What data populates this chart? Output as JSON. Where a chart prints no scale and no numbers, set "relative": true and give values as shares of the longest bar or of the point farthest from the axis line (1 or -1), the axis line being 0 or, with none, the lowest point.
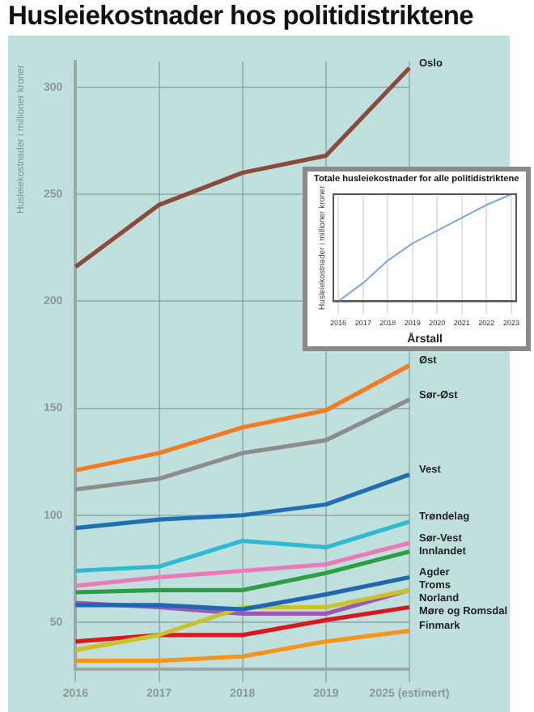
{
  "chart_data": [
    {
      "type": "line",
      "title": "Husleiekostnader hos politidistriktene",
      "ylabel": "Husleiekostnader i millioner kroner",
      "categories": [
        "2016",
        "2017",
        "2018",
        "2019",
        "2025 (estimert)"
      ],
      "ylim": [
        28,
        312
      ],
      "yticks": [
        50,
        100,
        150,
        200,
        250,
        300
      ],
      "grid": true,
      "marker": "none",
      "line_style": "solid",
      "series": [
        {
          "name": "Oslo",
          "color": "#8b4a3c",
          "values": [
            216,
            245,
            260,
            268,
            309
          ]
        },
        {
          "name": "Øst",
          "color": "#f47b20",
          "values": [
            121,
            129,
            141,
            149,
            170
          ]
        },
        {
          "name": "Sør-Øst",
          "color": "#8c8c8c",
          "values": [
            112,
            117,
            129,
            135,
            154
          ]
        },
        {
          "name": "Vest",
          "color": "#1f6fb5",
          "values": [
            94,
            98,
            100,
            105,
            119
          ]
        },
        {
          "name": "Trøndelag",
          "color": "#2ebad3",
          "values": [
            74,
            76,
            88,
            85,
            97
          ]
        },
        {
          "name": "Sør-Vest",
          "color": "#e87bb8",
          "values": [
            67,
            71,
            74,
            77,
            87
          ]
        },
        {
          "name": "Innlandet",
          "color": "#2e9e45",
          "values": [
            64,
            65,
            65,
            73,
            83
          ]
        },
        {
          "name": "Agder",
          "color": "#2166b0",
          "values": [
            58,
            58,
            56,
            63,
            71
          ]
        },
        {
          "name": "Troms",
          "color": "#c9c22a",
          "values": [
            37,
            44,
            57,
            57,
            65
          ]
        },
        {
          "name": "Norland",
          "color": "#9b59b6",
          "values": [
            59,
            57,
            54,
            54,
            65
          ]
        },
        {
          "name": "Møre og Romsdal",
          "color": "#d7191c",
          "values": [
            41,
            44,
            44,
            51,
            57
          ]
        },
        {
          "name": "Finmark",
          "color": "#f7941d",
          "values": [
            32,
            32,
            34,
            41,
            46
          ]
        }
      ]
    },
    {
      "type": "line",
      "title": "Totale husleiekostnader for alle politidistriktene",
      "ylabel": "Husleiekostnader i millioner kroner",
      "xlabel": "Årstall",
      "relative": true,
      "x": [
        2016,
        2017,
        2018,
        2019,
        2020,
        2021,
        2022,
        2023
      ],
      "xlim": [
        2015.8,
        2023.2
      ],
      "xticks": [
        2016,
        2017,
        2018,
        2019,
        2020,
        2021,
        2022,
        2023
      ],
      "tick_labels": "x",
      "grid": "x",
      "marker": "none",
      "series": [
        {
          "color": "#7fa7d9",
          "values": [
            0,
            0.17,
            0.38,
            0.54,
            0.66,
            0.78,
            0.9,
            1
          ]
        }
      ]
    }
  ]
}
